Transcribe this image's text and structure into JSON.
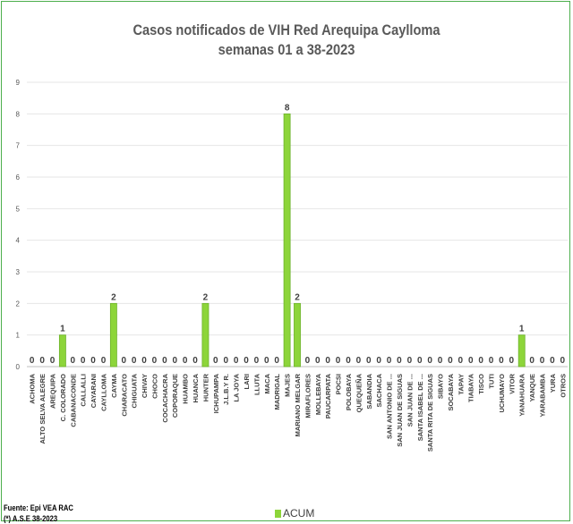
{
  "chart_data": {
    "type": "bar",
    "title": "Casos notificados de VIH Red Arequipa Caylloma",
    "subtitle": "semanas 01 a 38-2023",
    "categories": [
      "ACHOMA",
      "ALTO SELVA ALEGRE",
      "AREQUIPA",
      "C. COLORADO",
      "CABANACONDE",
      "CALLALLI",
      "CAYARANI",
      "CAYLLOMA",
      "CAYMA",
      "CHARACATO",
      "CHIGUATA",
      "CHIVAY",
      "CHOCO",
      "COCACHACRA",
      "COPORAQUE",
      "HUAMBO",
      "HUANCA",
      "HUNTER",
      "ICHUPAMPA",
      "J.L.B.Y R.",
      "LA JOYA",
      "LARI",
      "LLUTA",
      "MACA",
      "MADRIGAL",
      "MAJES",
      "MARIANO MELGAR",
      "MIRAFLORES",
      "MOLLEBAYA",
      "PAUCARPATA",
      "POCSI",
      "POLOBAYA",
      "QUEQUEÑA",
      "SABANDIA",
      "SACHACA",
      "SAN ANTONIO DE ...",
      "SAN JUAN DE SIGUAS",
      "SAN JUAN DE ...",
      "SANTA ISABEL DE ...",
      "SANTA RITA DE SIGUAS",
      "SIBAYO",
      "SOCABAYA",
      "TAPAY",
      "TIABAYA",
      "TISCO",
      "TUTI",
      "UCHUMAYO",
      "VITOR",
      "YANAHUARA",
      "YANQUE",
      "YARABAMBA",
      "YURA",
      "OTROS"
    ],
    "series": [
      {
        "name": "ACUM",
        "values": [
          0,
          0,
          0,
          1,
          0,
          0,
          0,
          0,
          2,
          0,
          0,
          0,
          0,
          0,
          0,
          0,
          0,
          2,
          0,
          0,
          0,
          0,
          0,
          0,
          0,
          8,
          2,
          0,
          0,
          0,
          0,
          0,
          0,
          0,
          0,
          0,
          0,
          0,
          0,
          0,
          0,
          0,
          0,
          0,
          0,
          0,
          0,
          0,
          1,
          0,
          0,
          0,
          0
        ]
      }
    ],
    "yticks": [
      "0",
      "1",
      "2",
      "3",
      "4",
      "5",
      "6",
      "7",
      "8",
      "9"
    ],
    "ylim": [
      0,
      9
    ],
    "xlabel": "",
    "ylabel": "",
    "grid": true,
    "legend": "bottom",
    "bar_color": "#8dd53a",
    "bar_edge_color": "#6cb22a"
  },
  "footer": {
    "source": "Fuente: Epi VEA RAC",
    "note": "(*) A.S.E 38-2023"
  }
}
